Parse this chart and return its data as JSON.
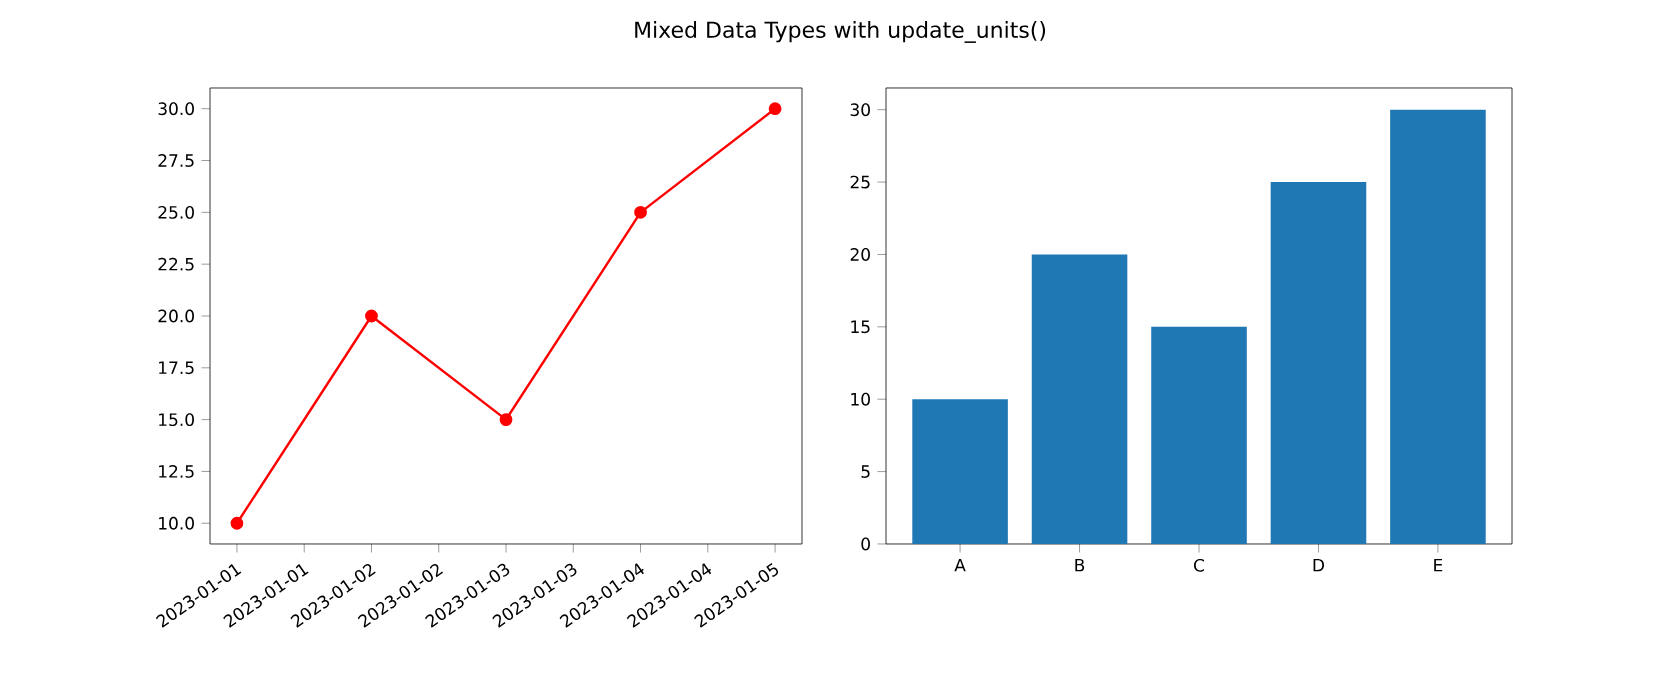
{
  "chart_data": [
    {
      "type": "line",
      "title": "Mixed Data Types with update_units()",
      "x": [
        "2023-01-01",
        "2023-01-02",
        "2023-01-03",
        "2023-01-04",
        "2023-01-05"
      ],
      "series": [
        {
          "color": "#ff0000",
          "values": [
            10,
            20,
            15,
            25,
            30
          ]
        }
      ],
      "marker": "circle",
      "line_style": "solid",
      "xlim": [
        "2022-12-31T19:12",
        "2023-01-05T04:48"
      ],
      "xticks": [
        {
          "value": "2023-01-01",
          "label": "2023-01-01"
        },
        {
          "value": "2023-01-01T12:00",
          "label": "2023-01-01"
        },
        {
          "value": "2023-01-02",
          "label": "2023-01-02"
        },
        {
          "value": "2023-01-02T12:00",
          "label": "2023-01-02"
        },
        {
          "value": "2023-01-03",
          "label": "2023-01-03"
        },
        {
          "value": "2023-01-03T12:00",
          "label": "2023-01-03"
        },
        {
          "value": "2023-01-04",
          "label": "2023-01-04"
        },
        {
          "value": "2023-01-04T12:00",
          "label": "2023-01-04"
        },
        {
          "value": "2023-01-05",
          "label": "2023-01-05"
        }
      ],
      "ylim": [
        9,
        31
      ],
      "yticks": [
        {
          "value": 10,
          "label": "10.0"
        },
        {
          "value": 12.5,
          "label": "12.5"
        },
        {
          "value": 15,
          "label": "15.0"
        },
        {
          "value": 17.5,
          "label": "17.5"
        },
        {
          "value": 20,
          "label": "20.0"
        },
        {
          "value": 22.5,
          "label": "22.5"
        },
        {
          "value": 25,
          "label": "25.0"
        },
        {
          "value": 27.5,
          "label": "27.5"
        },
        {
          "value": 30,
          "label": "30.0"
        }
      ]
    },
    {
      "type": "bar",
      "categories": [
        "A",
        "B",
        "C",
        "D",
        "E"
      ],
      "series": [
        {
          "color": "#1f77b4",
          "values": [
            10,
            20,
            15,
            25,
            30
          ]
        }
      ],
      "ylim": [
        0,
        31.5
      ],
      "yticks": [
        0,
        5,
        10,
        15,
        20,
        25,
        30
      ]
    }
  ]
}
